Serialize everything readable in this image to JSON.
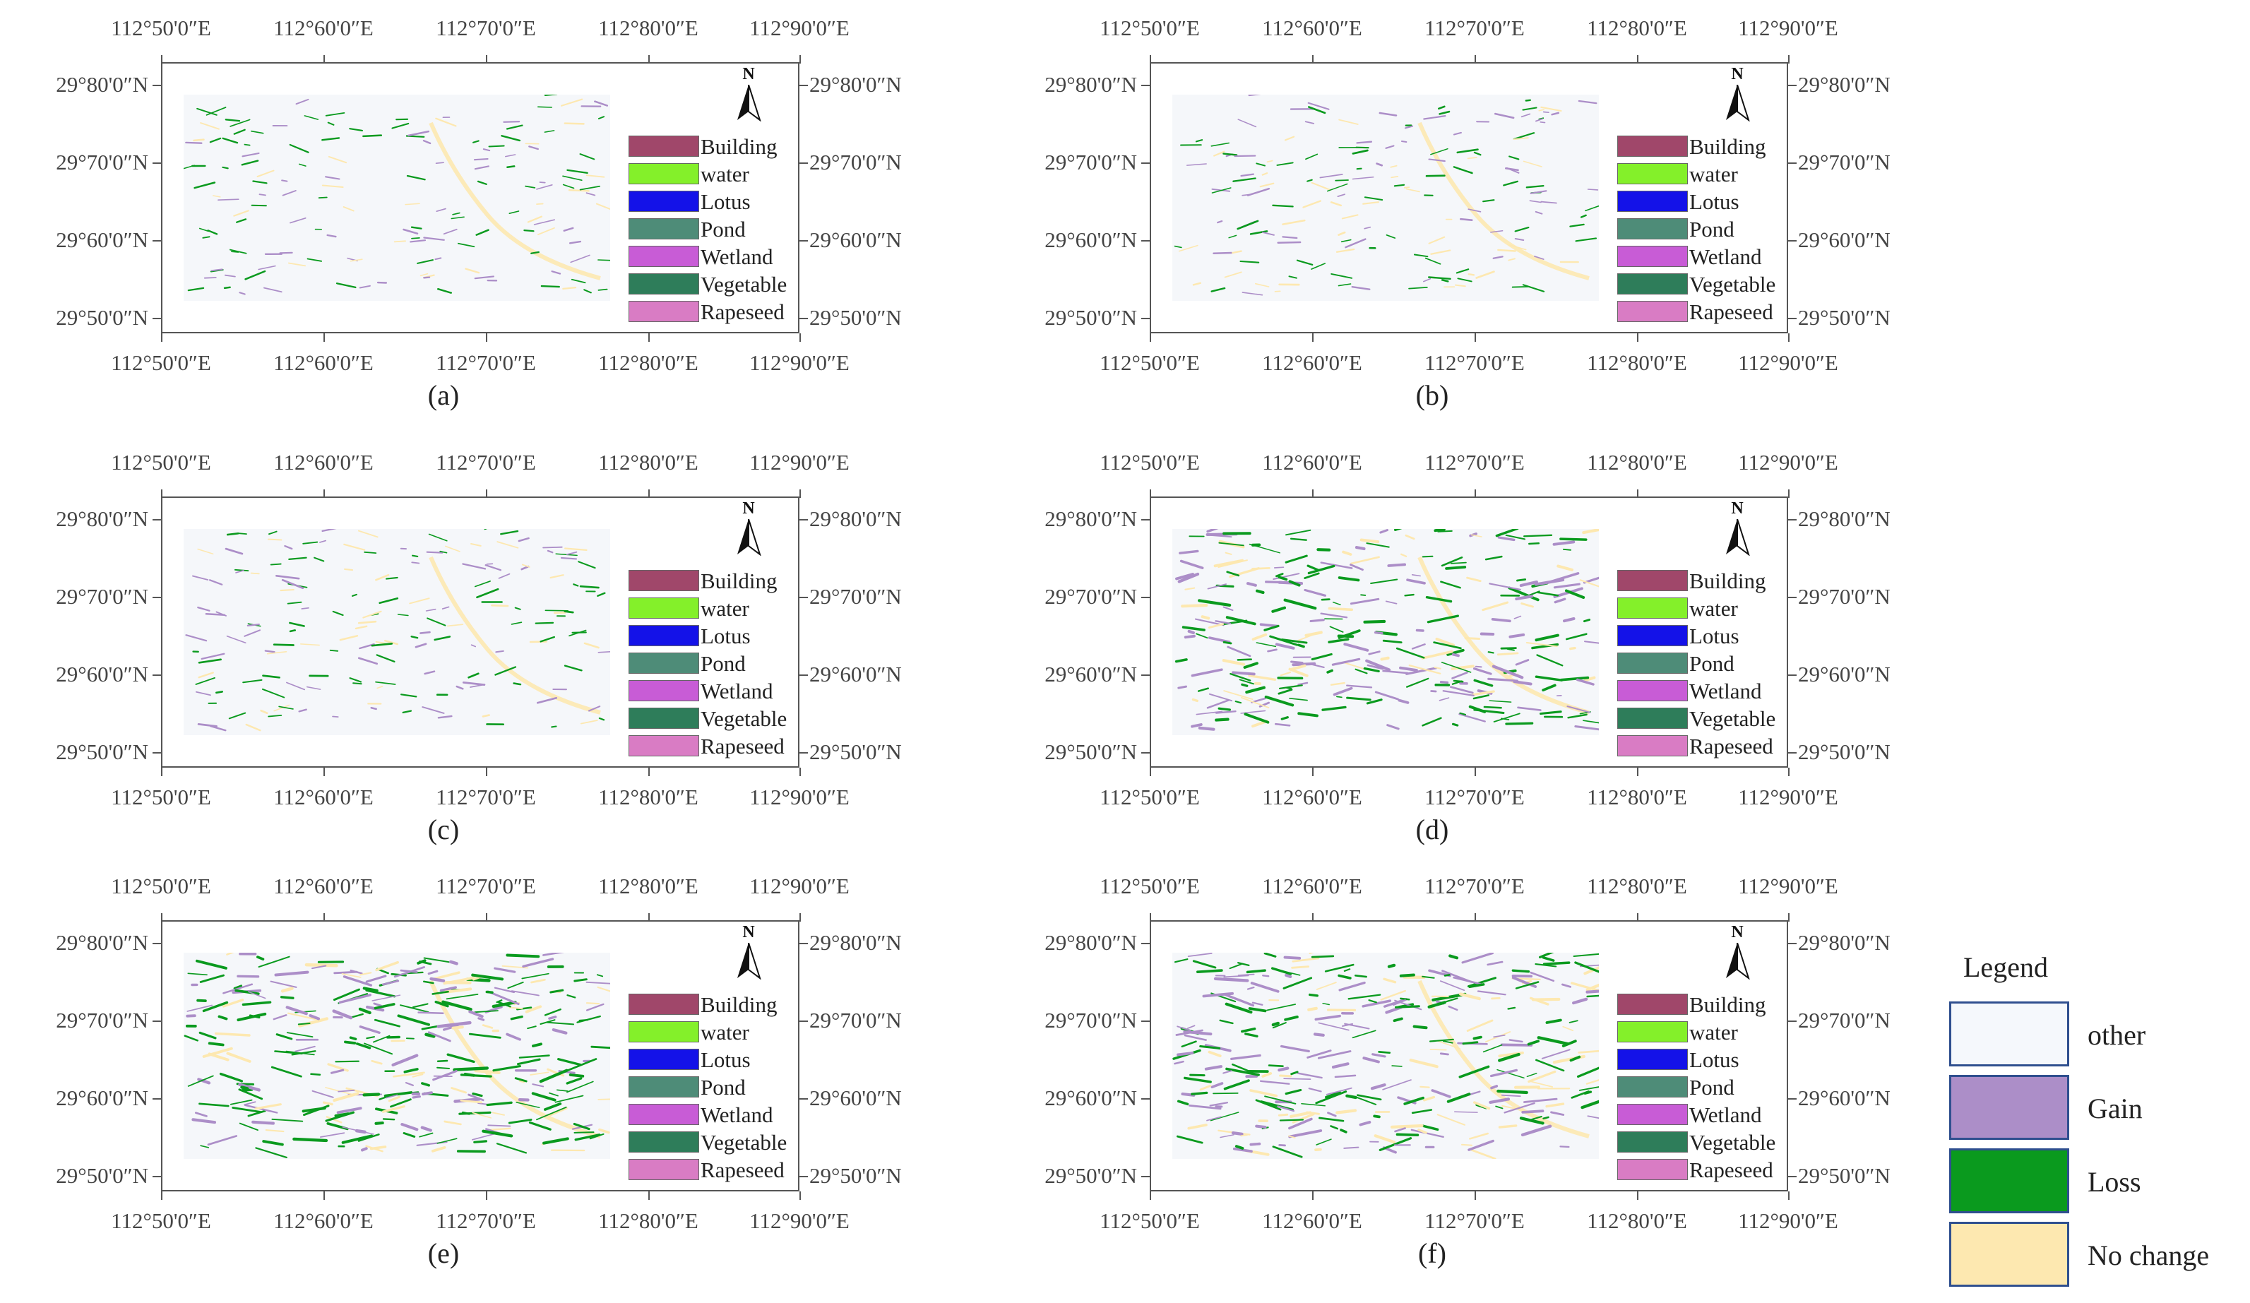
{
  "figure": {
    "lon_labels": [
      "112°50'0″E",
      "112°60'0″E",
      "112°70'0″E",
      "112°80'0″E",
      "112°90'0″E"
    ],
    "lat_labels": [
      "29°80'0″N",
      "29°70'0″N",
      "29°60'0″N",
      "29°50'0″N"
    ],
    "north_label": "N",
    "class_legend": [
      {
        "label": "Building",
        "color": "#a0476a"
      },
      {
        "label": "water",
        "color": "#84f02a"
      },
      {
        "label": "Lotus",
        "color": "#1412e8"
      },
      {
        "label": "Pond",
        "color": "#4e8c78"
      },
      {
        "label": "Wetland",
        "color": "#c85cd6"
      },
      {
        "label": "Vegetable",
        "color": "#2e7d5a"
      },
      {
        "label": "Rapeseed",
        "color": "#d97cc4"
      }
    ],
    "panels": [
      {
        "caption": "(a)",
        "density": 0.35
      },
      {
        "caption": "(b)",
        "density": 0.4
      },
      {
        "caption": "(c)",
        "density": 0.42
      },
      {
        "caption": "(d)",
        "density": 0.9
      },
      {
        "caption": "(e)",
        "density": 1.0
      },
      {
        "caption": "(f)",
        "density": 0.95
      }
    ],
    "change_legend": {
      "title": "Legend",
      "items": [
        {
          "label": "other",
          "color": "#f5f8fc"
        },
        {
          "label": "Gain",
          "color": "#ac8ec8"
        },
        {
          "label": "Loss",
          "color": "#0a9a1e"
        },
        {
          "label": "No change",
          "color": "#fde8b0"
        }
      ]
    }
  }
}
